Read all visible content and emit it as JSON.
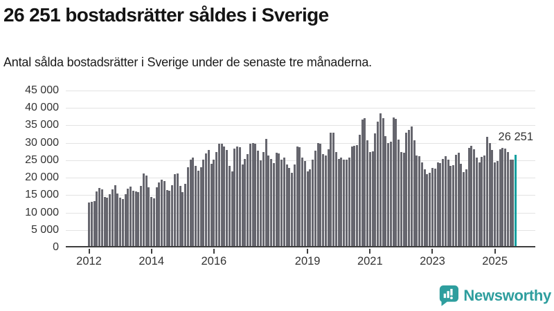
{
  "header": {
    "title": "26 251 bostadsrätter såldes i Sverige",
    "subtitle": "Antal sålda bostadsrätter i Sverige under de senaste tre månaderna."
  },
  "chart_data": {
    "type": "bar",
    "title": "26 251 bostadsrätter såldes i Sverige",
    "subtitle": "Antal sålda bostadsrätter i Sverige under de senaste tre månaderna.",
    "xlabel": "",
    "ylabel": "",
    "legend": "none",
    "grid": "horizontal",
    "frequency": "monthly rolling 3-month totals",
    "start_month": "2012-01",
    "end_month": "2025-09",
    "values": [
      12400,
      12700,
      12900,
      15700,
      16600,
      16300,
      14100,
      13800,
      14800,
      16200,
      17400,
      15100,
      13800,
      13500,
      14800,
      16400,
      17100,
      15800,
      15600,
      15400,
      17300,
      20800,
      20300,
      16800,
      14100,
      13600,
      16900,
      18200,
      19100,
      18700,
      16100,
      15900,
      17400,
      20700,
      20900,
      17300,
      15400,
      17800,
      22600,
      24700,
      25300,
      23000,
      21700,
      22600,
      24700,
      26500,
      27500,
      23500,
      24700,
      27000,
      29300,
      29300,
      28600,
      27500,
      23000,
      21400,
      28000,
      28600,
      28300,
      23400,
      25000,
      26400,
      29300,
      29600,
      29300,
      27300,
      24500,
      27000,
      30800,
      26000,
      25000,
      23700,
      26700,
      26500,
      24700,
      25300,
      23400,
      22400,
      21000,
      23400,
      28600,
      28300,
      25300,
      24400,
      21400,
      22000,
      24700,
      27300,
      29600,
      29300,
      26300,
      26000,
      27700,
      32600,
      32500,
      27000,
      25000,
      25300,
      24700,
      24700,
      25300,
      28600,
      28800,
      29000,
      32000,
      36200,
      36600,
      30300,
      27000,
      27200,
      32300,
      35600,
      38000,
      36600,
      31600,
      29600,
      30000,
      36900,
      36400,
      30600,
      27000,
      26700,
      32600,
      33300,
      34300,
      30300,
      26000,
      25700,
      23900,
      22000,
      20700,
      21000,
      22400,
      22200,
      24000,
      23700,
      25000,
      25800,
      24700,
      23000,
      23200,
      26200,
      26800,
      23500,
      21200,
      22000,
      28100,
      28800,
      27800,
      25300,
      24000,
      25500,
      25900,
      31300,
      29600,
      27500,
      24000,
      24400,
      27700,
      28100,
      28000,
      27000,
      24700,
      24800,
      26251
    ],
    "highlight": {
      "index": 164,
      "value": 26251,
      "label": "26 251"
    },
    "y_axis": {
      "min": 0,
      "max": 45000,
      "tick_step": 5000,
      "tick_labels": [
        "0",
        "5 000",
        "10 000",
        "15 000",
        "20 000",
        "25 000",
        "30 000",
        "35 000",
        "40 000",
        "45 000"
      ]
    },
    "x_axis": {
      "tick_labels": [
        "2012",
        "2014",
        "2016",
        "2019",
        "2021",
        "2023",
        "2025"
      ],
      "tick_month_indices": [
        0,
        24,
        48,
        84,
        108,
        132,
        156
      ]
    },
    "colors": {
      "bar": "#66666e",
      "highlight": "#0f9f9f",
      "gridline": "#e3e3e3",
      "axis": "#3d3d3d",
      "tick_text": "#333333"
    }
  },
  "footer": {
    "brand": "Newsworthy",
    "brand_color": "#2e9e9e"
  }
}
